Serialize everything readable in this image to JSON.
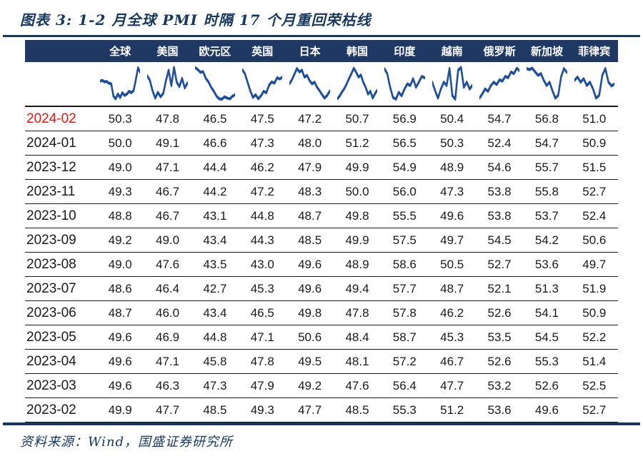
{
  "title": "图表 3: 1-2 月全球 PMI 时隔 17 个月重回荣枯线",
  "source": "资料来源：Wind，国盛证券研究所",
  "colors": {
    "header_background": "#1F3864",
    "title_navy": "#17375E",
    "sparkline_blue": "#1F4E9C",
    "highlight_red": "#EE1111",
    "row_divider": "#1a1a1a"
  },
  "chart_data": {
    "type": "table",
    "title": "图表 3: 1-2 月全球 PMI 时隔 17 个月重回荣枯线",
    "row_label_header": "",
    "columns": [
      "全球",
      "美国",
      "欧元区",
      "英国",
      "日本",
      "韩国",
      "印度",
      "越南",
      "俄罗斯",
      "新加坡",
      "菲律宾"
    ],
    "rows": [
      {
        "date": "2024-02",
        "highlight": true,
        "values": [
          "50.3",
          "47.8",
          "46.5",
          "47.5",
          "47.2",
          "50.7",
          "56.9",
          "50.4",
          "54.7",
          "56.8",
          "51.0"
        ]
      },
      {
        "date": "2024-01",
        "highlight": false,
        "values": [
          "50.0",
          "49.1",
          "46.6",
          "47.3",
          "48.0",
          "51.2",
          "56.5",
          "50.3",
          "52.4",
          "54.7",
          "50.9"
        ]
      },
      {
        "date": "2023-12",
        "highlight": false,
        "values": [
          "49.0",
          "47.1",
          "44.4",
          "46.2",
          "47.9",
          "49.9",
          "54.9",
          "48.9",
          "54.6",
          "55.7",
          "51.5"
        ]
      },
      {
        "date": "2023-11",
        "highlight": false,
        "values": [
          "49.3",
          "46.7",
          "44.2",
          "47.2",
          "48.3",
          "50.0",
          "56.0",
          "47.3",
          "53.8",
          "55.8",
          "52.7"
        ]
      },
      {
        "date": "2023-10",
        "highlight": false,
        "values": [
          "48.8",
          "46.7",
          "43.1",
          "44.8",
          "48.7",
          "49.8",
          "55.5",
          "49.6",
          "53.8",
          "53.7",
          "52.4"
        ]
      },
      {
        "date": "2023-09",
        "highlight": false,
        "values": [
          "49.2",
          "49.0",
          "43.4",
          "44.3",
          "48.5",
          "49.9",
          "57.5",
          "49.7",
          "54.5",
          "54.2",
          "50.6"
        ]
      },
      {
        "date": "2023-08",
        "highlight": false,
        "values": [
          "49.0",
          "47.6",
          "43.5",
          "43.0",
          "49.6",
          "48.9",
          "58.6",
          "50.5",
          "52.7",
          "53.6",
          "49.7"
        ]
      },
      {
        "date": "2023-07",
        "highlight": false,
        "values": [
          "48.6",
          "46.4",
          "42.7",
          "45.3",
          "49.6",
          "49.4",
          "57.7",
          "48.7",
          "52.1",
          "51.3",
          "51.9"
        ]
      },
      {
        "date": "2023-06",
        "highlight": false,
        "values": [
          "48.7",
          "46.0",
          "43.4",
          "46.5",
          "49.8",
          "47.8",
          "57.8",
          "46.2",
          "52.6",
          "54.1",
          "50.9"
        ]
      },
      {
        "date": "2023-05",
        "highlight": false,
        "values": [
          "49.6",
          "46.9",
          "44.8",
          "47.1",
          "50.6",
          "48.4",
          "58.7",
          "45.3",
          "53.5",
          "54.5",
          "52.2"
        ]
      },
      {
        "date": "2023-04",
        "highlight": false,
        "values": [
          "49.6",
          "47.1",
          "45.8",
          "47.8",
          "49.5",
          "48.1",
          "57.2",
          "46.7",
          "52.6",
          "55.3",
          "51.4"
        ]
      },
      {
        "date": "2023-03",
        "highlight": false,
        "values": [
          "49.6",
          "46.3",
          "47.3",
          "47.9",
          "49.2",
          "47.6",
          "56.4",
          "47.7",
          "53.2",
          "52.6",
          "52.5"
        ]
      },
      {
        "date": "2023-02",
        "highlight": false,
        "values": [
          "49.9",
          "47.7",
          "48.5",
          "49.3",
          "47.7",
          "48.5",
          "55.3",
          "51.2",
          "53.6",
          "49.6",
          "52.7"
        ]
      }
    ],
    "sparklines": {
      "note": "mini PMI trend line per column, normalized 0-100 (visual approximation)",
      "series": [
        {
          "name": "全球",
          "points": [
            58,
            60,
            56,
            57,
            52,
            50,
            14,
            6,
            20,
            10,
            24,
            16,
            20,
            28,
            24,
            30,
            62,
            97,
            84
          ]
        },
        {
          "name": "美国",
          "points": [
            74,
            60,
            30,
            8,
            25,
            12,
            22,
            60,
            90,
            45,
            98,
            55,
            42,
            66,
            38,
            52
          ]
        },
        {
          "name": "欧元区",
          "points": [
            98,
            92,
            84,
            86,
            66,
            56,
            40,
            28,
            14,
            6,
            5,
            12,
            8,
            6,
            14,
            18
          ]
        },
        {
          "name": "英国",
          "points": [
            92,
            80,
            55,
            30,
            10,
            18,
            6,
            15,
            28,
            24,
            46,
            56,
            52,
            68,
            64,
            70
          ]
        },
        {
          "name": "日本",
          "points": [
            50,
            62,
            78,
            95,
            85,
            90,
            70,
            75,
            60,
            50,
            55,
            40,
            30,
            18,
            8,
            16,
            28
          ]
        },
        {
          "name": "韩国",
          "points": [
            6,
            14,
            26,
            36,
            50,
            66,
            80,
            96,
            84,
            70,
            76,
            55,
            40,
            20,
            28,
            8,
            22,
            32
          ]
        },
        {
          "name": "印度",
          "points": [
            95,
            80,
            40,
            10,
            5,
            25,
            15,
            35,
            50,
            45,
            65,
            40,
            55,
            72,
            68
          ]
        },
        {
          "name": "越南",
          "points": [
            55,
            30,
            8,
            35,
            55,
            45,
            95,
            15,
            5,
            90,
            98,
            40,
            55,
            35,
            46
          ]
        },
        {
          "name": "俄罗斯",
          "points": [
            8,
            20,
            35,
            28,
            45,
            55,
            48,
            62,
            58,
            72,
            68,
            85,
            80,
            96,
            88
          ]
        },
        {
          "name": "新加坡",
          "points": [
            95,
            92,
            96,
            85,
            75,
            80,
            60,
            45,
            55,
            30,
            8,
            16,
            70,
            95,
            84
          ]
        },
        {
          "name": "菲律宾",
          "points": [
            60,
            70,
            55,
            65,
            45,
            55,
            35,
            8,
            16,
            75,
            95,
            55,
            44,
            50
          ]
        }
      ]
    }
  }
}
